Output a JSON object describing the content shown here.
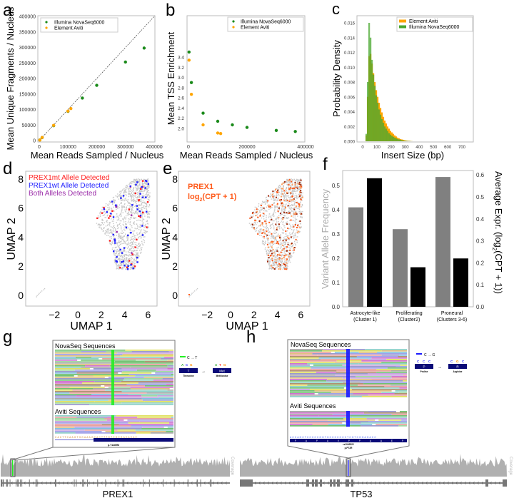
{
  "panel_letters": {
    "a": "a",
    "b": "b",
    "c": "c",
    "d": "d",
    "e": "e",
    "f": "f",
    "g": "g",
    "h": "h"
  },
  "colors": {
    "illumina": "#1a8a1a",
    "aviti": "#ffa500",
    "mt": "#ff2020",
    "wt": "#2020ff",
    "both": "#9a2aa8",
    "expr": "#ff5a1a",
    "vaf": "#808080",
    "bar_expr": "#000000",
    "navy": "#0a0a78"
  },
  "chart_data": [
    {
      "type": "scatter",
      "id": "a",
      "xlabel": "Mean Reads Sampled / Nucleus",
      "ylabel": "Mean Unique Fragments / Nucleus",
      "xlim": [
        0,
        400000
      ],
      "ylim": [
        0,
        400000
      ],
      "xticks": [
        0,
        100000,
        200000,
        300000,
        400000
      ],
      "yticks": [
        0,
        50000,
        100000,
        150000,
        200000,
        250000,
        300000,
        350000,
        400000
      ],
      "legend": "top-left",
      "diagonal": true,
      "series": [
        {
          "name": "Illumina NovaSeq6000",
          "x": [
            2000,
            10000,
            50000,
            100000,
            150000,
            200000,
            300000,
            365000
          ],
          "y": [
            1800,
            9500,
            48000,
            94000,
            137000,
            178000,
            253000,
            298000
          ]
        },
        {
          "name": "Element Aviti",
          "x": [
            2000,
            10000,
            50000,
            100000,
            110000
          ],
          "y": [
            1500,
            10000,
            49000,
            95000,
            103000
          ]
        }
      ]
    },
    {
      "type": "scatter",
      "id": "b",
      "xlabel": "Mean Reads Sampled / Nucleus",
      "ylabel": "Mean TSS Enrichment",
      "xlim": [
        0,
        400000
      ],
      "ylim": [
        1.85,
        3.55
      ],
      "xticks": [
        0,
        200000,
        400000
      ],
      "yticks": [
        2.0,
        2.2,
        2.4,
        2.6,
        2.8,
        3.0,
        3.2,
        3.4
      ],
      "legend": "top-right",
      "series": [
        {
          "name": "Illumina NovaSeq6000",
          "x": [
            2000,
            10000,
            50000,
            100000,
            150000,
            200000,
            300000,
            365000
          ],
          "y": [
            3.5,
            2.9,
            2.3,
            2.14,
            2.07,
            2.02,
            1.96,
            1.94
          ]
        },
        {
          "name": "Element Aviti",
          "x": [
            2000,
            10000,
            50000,
            100000,
            110000
          ],
          "y": [
            3.34,
            2.67,
            2.07,
            1.91,
            1.9
          ]
        }
      ]
    },
    {
      "type": "histogram",
      "id": "c",
      "xlabel": "Insert Size (bp)",
      "ylabel": "Probability Density",
      "xlim": [
        -60,
        760
      ],
      "ylim": [
        0,
        0.017
      ],
      "xticks": [
        0,
        100,
        200,
        300,
        400,
        500,
        600,
        700
      ],
      "yticks": [
        "0.000",
        "0.002",
        "0.004",
        "0.006",
        "0.008",
        "0.010",
        "0.012",
        "0.014",
        "0.016"
      ],
      "legend": "top-right",
      "bin_width": 10,
      "series": [
        {
          "name": "Element Aviti",
          "values": [
            0,
            0,
            0.0008,
            0.006,
            0.0115,
            0.0118,
            0.0105,
            0.0092,
            0.008,
            0.0069,
            0.006,
            0.0052,
            0.0045,
            0.0039,
            0.0033,
            0.0028,
            0.0024,
            0.002,
            0.0017,
            0.0014,
            0.0012,
            0.001,
            0.0008,
            0.00065,
            0.0005,
            0.0004,
            0.0003,
            0.00025,
            0.0002,
            0.00015,
            0.0001,
            8e-05,
            6e-05,
            4e-05,
            2e-05
          ]
        },
        {
          "name": "Illumina NovaSeq6000",
          "values": [
            0,
            0,
            0.001,
            0.008,
            0.016,
            0.014,
            0.011,
            0.009,
            0.0075,
            0.0062,
            0.0052,
            0.0043,
            0.0036,
            0.003,
            0.0025,
            0.002,
            0.0017,
            0.0014,
            0.0011,
            0.0009,
            0.00075,
            0.0006,
            0.0005,
            0.0004,
            0.0003,
            0.00025,
            0.0002,
            0.00015,
            0.0001,
            8e-05,
            6e-05,
            4e-05,
            3e-05,
            2e-05,
            1e-05
          ]
        }
      ]
    },
    {
      "type": "scatter",
      "id": "d",
      "xlabel": "UMAP 1",
      "ylabel": "UMAP 2",
      "xticks": [
        -2,
        0,
        2,
        4,
        6
      ],
      "yticks": [
        0,
        2,
        4,
        6,
        8
      ],
      "legend": [
        "PREX1mt Allele Detected",
        "PREX1wt Allele Detected",
        "Both Alleles Detected"
      ],
      "highlight_counts": {
        "mt": 30,
        "wt": 55,
        "both": 4
      }
    },
    {
      "type": "scatter",
      "id": "e",
      "xlabel": "UMAP 1",
      "ylabel": "UMAP 2",
      "xticks": [
        -2,
        0,
        2,
        4,
        6
      ],
      "yticks": [
        0,
        2,
        4,
        6,
        8
      ],
      "title_line1": "PREX1",
      "title_line2": "log",
      "title_sub": "2",
      "title_line3": "(CPT + 1)"
    },
    {
      "type": "bar",
      "id": "f",
      "categories": [
        [
          "Astrocyte-like",
          "(Cluster 1)"
        ],
        [
          "Proliferating",
          "(Cluster2)"
        ],
        [
          "Proneural",
          "(Clusters 3-6)"
        ]
      ],
      "ylabel_left": "Variant Allele Frequency",
      "ylabel_right": "Average Expr. (log",
      "ylabel_right_sub": "2",
      "ylabel_right_end": "(CPT + 1))",
      "yticks_left": [
        "0.0",
        "0.1",
        "0.2",
        "0.3",
        "0.4",
        "0.5"
      ],
      "yticks_right": [
        "0.0",
        "0.1",
        "0.2",
        "0.3",
        "0.4",
        "0.5",
        "0.6"
      ],
      "series": [
        {
          "name": "Variant Allele Frequency",
          "axis": "left",
          "values": [
            0.41,
            0.32,
            0.535
          ]
        },
        {
          "name": "Average Expr.",
          "axis": "right",
          "values": [
            0.585,
            0.18,
            0.22
          ]
        }
      ]
    }
  ],
  "panel_g": {
    "novaseq_title": "NovaSeq Sequences",
    "aviti_title": "Aviti Sequences",
    "sequence": "CACTTCAAGTGGAAAGCACTTTGTCGCGACACAC",
    "protein_label": "p.T1469M",
    "legend_change": "C → T",
    "codon_from": [
      "A",
      "C",
      "G"
    ],
    "aa_from": "T",
    "aa_from_name": "Threonine",
    "codon_to": [
      "A",
      "T",
      "G"
    ],
    "aa_to": "Met",
    "aa_to_name": "Methionine",
    "coverage_label": "Coverage",
    "gene": "PREX1"
  },
  "panel_h": {
    "novaseq_title": "NovaSeq Sequences",
    "aviti_title": "Aviti Sequences",
    "sequence": "ACCAGCTCCCCCGGTGCCCCCCCTCGTCGGAGACC",
    "aa_track": [
      "P",
      "A",
      "P",
      "A",
      "V",
      "P",
      "P",
      "A",
      "A",
      "E",
      "P"
    ],
    "snp_label": "rs1042522",
    "protein_label": "p.P72R",
    "legend_change": "C → G",
    "codon_from": [
      "C",
      "C",
      "C"
    ],
    "aa_from": "P",
    "aa_from_name": "Proline",
    "codon_to": [
      "C",
      "G",
      "C"
    ],
    "aa_to": "R",
    "aa_to_name": "Arginine",
    "coverage_label": "Coverage",
    "gene": "TP53"
  }
}
